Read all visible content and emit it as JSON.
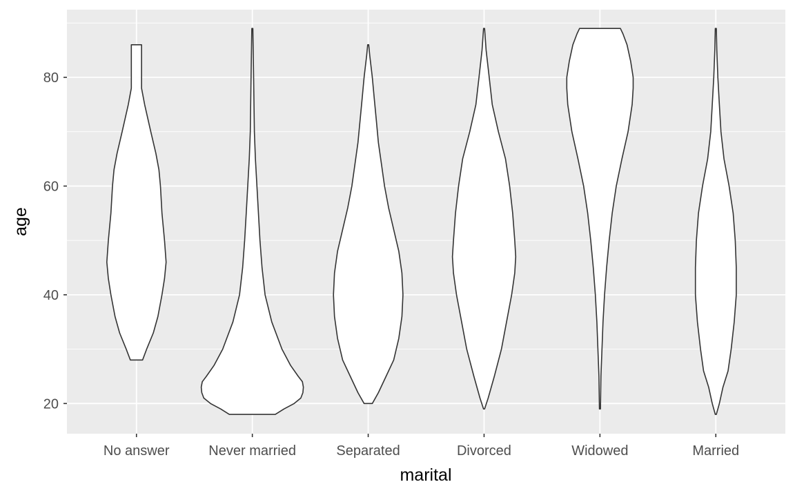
{
  "chart_data": {
    "type": "violin",
    "xlabel": "marital",
    "ylabel": "age",
    "categories": [
      "No answer",
      "Never married",
      "Separated",
      "Divorced",
      "Widowed",
      "Married"
    ],
    "y_ticks": [
      20,
      40,
      60,
      80
    ],
    "ylim": [
      14.45,
      92.45
    ],
    "grid": true,
    "background": "#ebebeb",
    "violins": [
      {
        "category": "No answer",
        "min": 28,
        "max": 86,
        "profile": [
          [
            28,
            0.12
          ],
          [
            30,
            0.2
          ],
          [
            33,
            0.33
          ],
          [
            36,
            0.42
          ],
          [
            40,
            0.5
          ],
          [
            43,
            0.55
          ],
          [
            46,
            0.58
          ],
          [
            50,
            0.55
          ],
          [
            55,
            0.5
          ],
          [
            60,
            0.47
          ],
          [
            63,
            0.44
          ],
          [
            66,
            0.38
          ],
          [
            70,
            0.28
          ],
          [
            75,
            0.16
          ],
          [
            78,
            0.1
          ],
          [
            80,
            0.1
          ],
          [
            83,
            0.1
          ],
          [
            86,
            0.1
          ]
        ]
      },
      {
        "category": "Never married",
        "min": 18,
        "max": 89,
        "profile": [
          [
            18,
            0.45
          ],
          [
            19,
            0.62
          ],
          [
            20,
            0.82
          ],
          [
            21,
            0.95
          ],
          [
            22,
            0.99
          ],
          [
            23,
            1.0
          ],
          [
            24,
            0.98
          ],
          [
            25,
            0.9
          ],
          [
            27,
            0.75
          ],
          [
            30,
            0.58
          ],
          [
            35,
            0.38
          ],
          [
            40,
            0.25
          ],
          [
            45,
            0.19
          ],
          [
            50,
            0.15
          ],
          [
            55,
            0.12
          ],
          [
            60,
            0.09
          ],
          [
            65,
            0.06
          ],
          [
            70,
            0.04
          ],
          [
            80,
            0.025
          ],
          [
            89,
            0.01
          ]
        ]
      },
      {
        "category": "Separated",
        "min": 20,
        "max": 86,
        "profile": [
          [
            20,
            0.08
          ],
          [
            22,
            0.2
          ],
          [
            25,
            0.35
          ],
          [
            28,
            0.5
          ],
          [
            32,
            0.6
          ],
          [
            36,
            0.66
          ],
          [
            40,
            0.68
          ],
          [
            44,
            0.66
          ],
          [
            48,
            0.6
          ],
          [
            52,
            0.5
          ],
          [
            56,
            0.4
          ],
          [
            60,
            0.32
          ],
          [
            64,
            0.26
          ],
          [
            68,
            0.2
          ],
          [
            72,
            0.16
          ],
          [
            76,
            0.12
          ],
          [
            80,
            0.08
          ],
          [
            84,
            0.03
          ],
          [
            86,
            0.01
          ]
        ]
      },
      {
        "category": "Divorced",
        "min": 19,
        "max": 89,
        "profile": [
          [
            19,
            0.01
          ],
          [
            21,
            0.08
          ],
          [
            25,
            0.2
          ],
          [
            30,
            0.34
          ],
          [
            35,
            0.44
          ],
          [
            40,
            0.54
          ],
          [
            44,
            0.6
          ],
          [
            47,
            0.62
          ],
          [
            50,
            0.6
          ],
          [
            55,
            0.56
          ],
          [
            60,
            0.5
          ],
          [
            65,
            0.42
          ],
          [
            70,
            0.28
          ],
          [
            75,
            0.16
          ],
          [
            80,
            0.1
          ],
          [
            85,
            0.04
          ],
          [
            89,
            0.01
          ]
        ]
      },
      {
        "category": "Widowed",
        "min": 19,
        "max": 89,
        "profile": [
          [
            19,
            0.01
          ],
          [
            25,
            0.02
          ],
          [
            30,
            0.04
          ],
          [
            35,
            0.06
          ],
          [
            40,
            0.09
          ],
          [
            45,
            0.13
          ],
          [
            50,
            0.18
          ],
          [
            55,
            0.24
          ],
          [
            60,
            0.32
          ],
          [
            65,
            0.43
          ],
          [
            70,
            0.55
          ],
          [
            75,
            0.63
          ],
          [
            78,
            0.65
          ],
          [
            80,
            0.65
          ],
          [
            83,
            0.6
          ],
          [
            86,
            0.53
          ],
          [
            88,
            0.45
          ],
          [
            89,
            0.4
          ]
        ]
      },
      {
        "category": "Married",
        "min": 18,
        "max": 89,
        "profile": [
          [
            18,
            0.01
          ],
          [
            20,
            0.07
          ],
          [
            23,
            0.14
          ],
          [
            26,
            0.24
          ],
          [
            30,
            0.3
          ],
          [
            35,
            0.36
          ],
          [
            40,
            0.4
          ],
          [
            45,
            0.4
          ],
          [
            50,
            0.38
          ],
          [
            55,
            0.34
          ],
          [
            60,
            0.26
          ],
          [
            65,
            0.16
          ],
          [
            70,
            0.1
          ],
          [
            75,
            0.07
          ],
          [
            80,
            0.04
          ],
          [
            85,
            0.02
          ],
          [
            89,
            0.01
          ]
        ]
      }
    ]
  }
}
